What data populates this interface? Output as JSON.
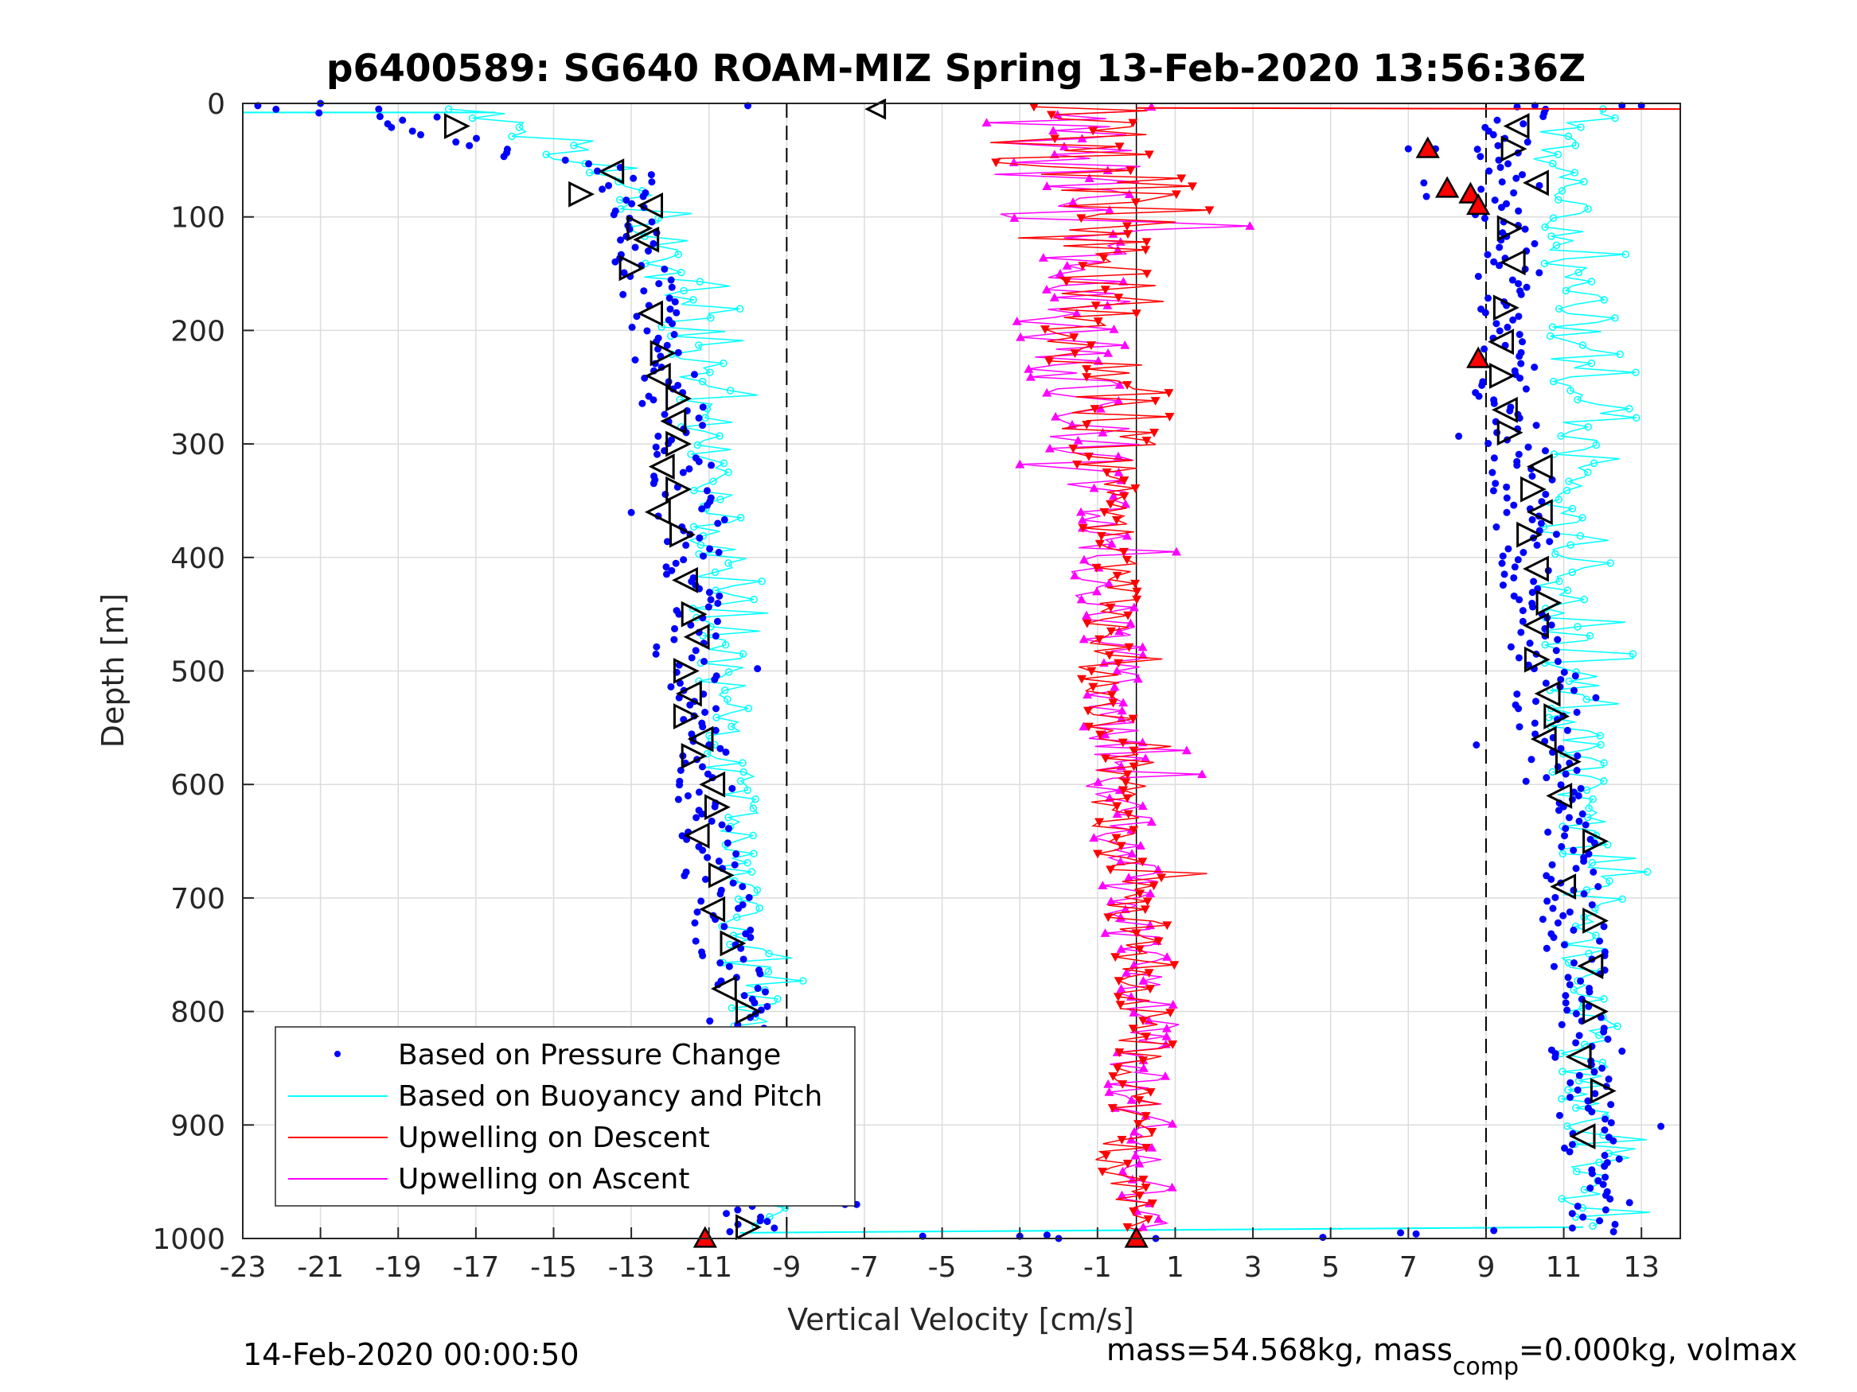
{
  "chart_data": {
    "type": "scatter",
    "title": "p6400589: SG640 ROAM-MIZ Spring 13-Feb-2020 13:56:36Z",
    "xlabel": "Vertical Velocity [cm/s]",
    "ylabel": "Depth [m]",
    "xlim": [
      -23,
      14
    ],
    "ylim": [
      1000,
      0
    ],
    "y_reversed": true,
    "grid": true,
    "xticks": [
      -23,
      -21,
      -19,
      -17,
      -15,
      -13,
      -11,
      -9,
      -7,
      -5,
      -3,
      -1,
      1,
      3,
      5,
      7,
      9,
      11,
      13
    ],
    "xtick_labels": [
      "-23",
      "-21",
      "-19",
      "-17",
      "-15",
      "-13",
      "-11",
      "-9",
      "-7",
      "-5",
      "-3",
      "-1",
      "1",
      "3",
      "5",
      "7",
      "9",
      "11",
      "13"
    ],
    "yticks": [
      0,
      100,
      200,
      300,
      400,
      500,
      600,
      700,
      800,
      900,
      1000
    ],
    "ytick_labels": [
      "0",
      "100",
      "200",
      "300",
      "400",
      "500",
      "600",
      "700",
      "800",
      "900",
      "1000"
    ],
    "reference_lines": {
      "dashed_x": [
        -9,
        9
      ],
      "solid_x": [
        0
      ]
    },
    "legend_position": "bottom-left",
    "series": [
      {
        "name": "Based on Pressure Change",
        "color": "#0000ff",
        "style": "dots",
        "profiles": {
          "descent": {
            "depth": [
              0,
              20,
              40,
              60,
              80,
              100,
              150,
              200,
              250,
              300,
              350,
              400,
              450,
              500,
              550,
              600,
              650,
              700,
              750,
              800,
              850,
              900,
              950,
              1000
            ],
            "velocity": [
              -22.5,
              -18.5,
              -16.5,
              -13.5,
              -13.0,
              -12.8,
              -12.6,
              -12.4,
              -12.0,
              -11.8,
              -11.6,
              -11.4,
              -11.5,
              -11.6,
              -11.4,
              -11.0,
              -11.0,
              -10.8,
              -10.5,
              -10.2,
              -10.3,
              -10.2,
              -10.0,
              -10.0
            ]
          },
          "ascent": {
            "depth": [
              0,
              20,
              40,
              60,
              80,
              100,
              150,
              200,
              250,
              300,
              350,
              400,
              450,
              500,
              550,
              600,
              650,
              700,
              750,
              800,
              850,
              900,
              950,
              1000
            ],
            "velocity": [
              10.0,
              9.6,
              9.2,
              9.4,
              9.7,
              9.5,
              9.6,
              9.4,
              9.5,
              9.6,
              10.0,
              10.1,
              10.3,
              10.5,
              10.6,
              10.8,
              11.0,
              11.2,
              11.3,
              11.4,
              11.5,
              11.6,
              11.7,
              11.6
            ]
          }
        }
      },
      {
        "name": "Based on Buoyancy and Pitch",
        "color": "#00ffff",
        "style": "line-circles",
        "profiles": {
          "descent": {
            "depth": [
              5,
              20,
              40,
              60,
              80,
              100,
              150,
              200,
              250,
              300,
              350,
              400,
              450,
              500,
              550,
              600,
              650,
              700,
              750,
              800,
              850,
              900,
              950,
              990
            ],
            "velocity": [
              -17.0,
              -16.0,
              -15.0,
              -13.5,
              -13.0,
              -12.5,
              -12.0,
              -11.5,
              -11.2,
              -11.0,
              -10.8,
              -10.8,
              -10.8,
              -10.8,
              -10.6,
              -10.5,
              -10.3,
              -10.2,
              -10.0,
              -9.9,
              -9.8,
              -9.8,
              -9.7,
              -9.7
            ]
          },
          "ascent": {
            "depth": [
              5,
              20,
              40,
              60,
              80,
              100,
              150,
              200,
              250,
              300,
              350,
              400,
              450,
              500,
              550,
              600,
              650,
              700,
              750,
              800,
              850,
              900,
              950,
              990
            ],
            "velocity": [
              11.5,
              11.0,
              10.8,
              10.8,
              11.0,
              11.0,
              11.2,
              11.3,
              11.3,
              11.2,
              11.0,
              11.0,
              11.0,
              11.2,
              11.3,
              11.4,
              11.5,
              11.6,
              11.6,
              11.5,
              11.5,
              11.6,
              11.6,
              11.6
            ]
          }
        }
      },
      {
        "name": "Upwelling on Descent",
        "color": "#ff0000",
        "style": "line-down-triangles",
        "profile": {
          "depth": [
            5,
            40,
            80,
            120,
            160,
            200,
            250,
            300,
            350,
            400,
            450,
            500,
            550,
            600,
            650,
            700,
            750,
            800,
            850,
            900,
            950,
            990
          ],
          "velocity": [
            -1.5,
            -2.0,
            0.5,
            -1.0,
            -0.8,
            -1.2,
            -0.6,
            -0.5,
            -0.7,
            -0.6,
            -0.7,
            -0.9,
            -0.8,
            -0.4,
            -0.3,
            0.0,
            0.2,
            0.3,
            0.2,
            0.1,
            -0.5,
            -0.2
          ]
        }
      },
      {
        "name": "Upwelling on Ascent",
        "color": "#ff00ff",
        "style": "line-up-triangles",
        "profile": {
          "depth": [
            5,
            40,
            80,
            120,
            160,
            200,
            250,
            300,
            350,
            400,
            450,
            500,
            550,
            600,
            650,
            700,
            750,
            800,
            850,
            900,
            950,
            990
          ],
          "velocity": [
            -1.0,
            -2.5,
            -1.5,
            -1.2,
            -1.3,
            -1.8,
            -1.5,
            -1.2,
            -1.0,
            -0.9,
            -0.8,
            -0.7,
            -0.6,
            -0.5,
            -0.3,
            -0.2,
            0.0,
            0.2,
            0.1,
            0.0,
            0.2,
            0.1
          ]
        }
      }
    ],
    "markers": {
      "descent_triangles_depth": [
        20,
        60,
        80,
        90,
        110,
        120,
        145,
        185,
        220,
        240,
        260,
        280,
        300,
        320,
        340,
        360,
        380,
        420,
        450,
        470,
        500,
        520,
        540,
        560,
        575,
        600,
        620,
        645,
        680,
        710,
        740,
        780,
        800,
        840,
        870,
        900,
        930,
        960,
        990
      ],
      "descent_triangles_velocity": [
        -17.5,
        -13.5,
        -14.3,
        -12.5,
        -12.8,
        -12.6,
        -13.0,
        -12.5,
        -12.2,
        -12.3,
        -11.8,
        -11.9,
        -11.8,
        -12.2,
        -11.8,
        -12.3,
        -11.7,
        -11.6,
        -11.4,
        -11.3,
        -11.6,
        -11.5,
        -11.6,
        -11.2,
        -11.4,
        -10.9,
        -10.8,
        -11.3,
        -10.7,
        -10.9,
        -10.4,
        -10.6,
        -10.0,
        -10.5,
        -10.1,
        -10.4,
        -9.9,
        -10.5,
        -10.0
      ],
      "ascent_triangles_depth": [
        20,
        40,
        70,
        110,
        140,
        180,
        210,
        240,
        270,
        290,
        320,
        340,
        360,
        380,
        410,
        440,
        460,
        490,
        520,
        540,
        560,
        580,
        610,
        650,
        690,
        720,
        760,
        800,
        840,
        870,
        910
      ],
      "ascent_triangles_velocity": [
        9.8,
        9.7,
        10.3,
        9.6,
        9.7,
        9.5,
        9.4,
        9.4,
        9.5,
        9.6,
        10.4,
        10.2,
        10.4,
        10.1,
        10.3,
        10.6,
        10.3,
        10.3,
        10.6,
        10.8,
        10.5,
        11.1,
        10.9,
        11.8,
        11.0,
        11.8,
        11.7,
        11.8,
        11.4,
        12.0,
        11.5
      ],
      "red_triangles_depth": [
        40,
        75,
        80,
        90,
        225,
        1000,
        1000
      ],
      "red_triangles_velocity": [
        7.5,
        8.0,
        8.6,
        8.8,
        8.8,
        -11.1,
        0.0
      ],
      "surface_marker": {
        "depth": 5,
        "velocity": -6.7
      }
    }
  },
  "footer": {
    "timestamp": "14-Feb-2020 00:00:50",
    "mass_text": "mass=54.568kg, mass",
    "mass_sub": "comp",
    "mass_rest": "=0.000kg, volmax"
  }
}
